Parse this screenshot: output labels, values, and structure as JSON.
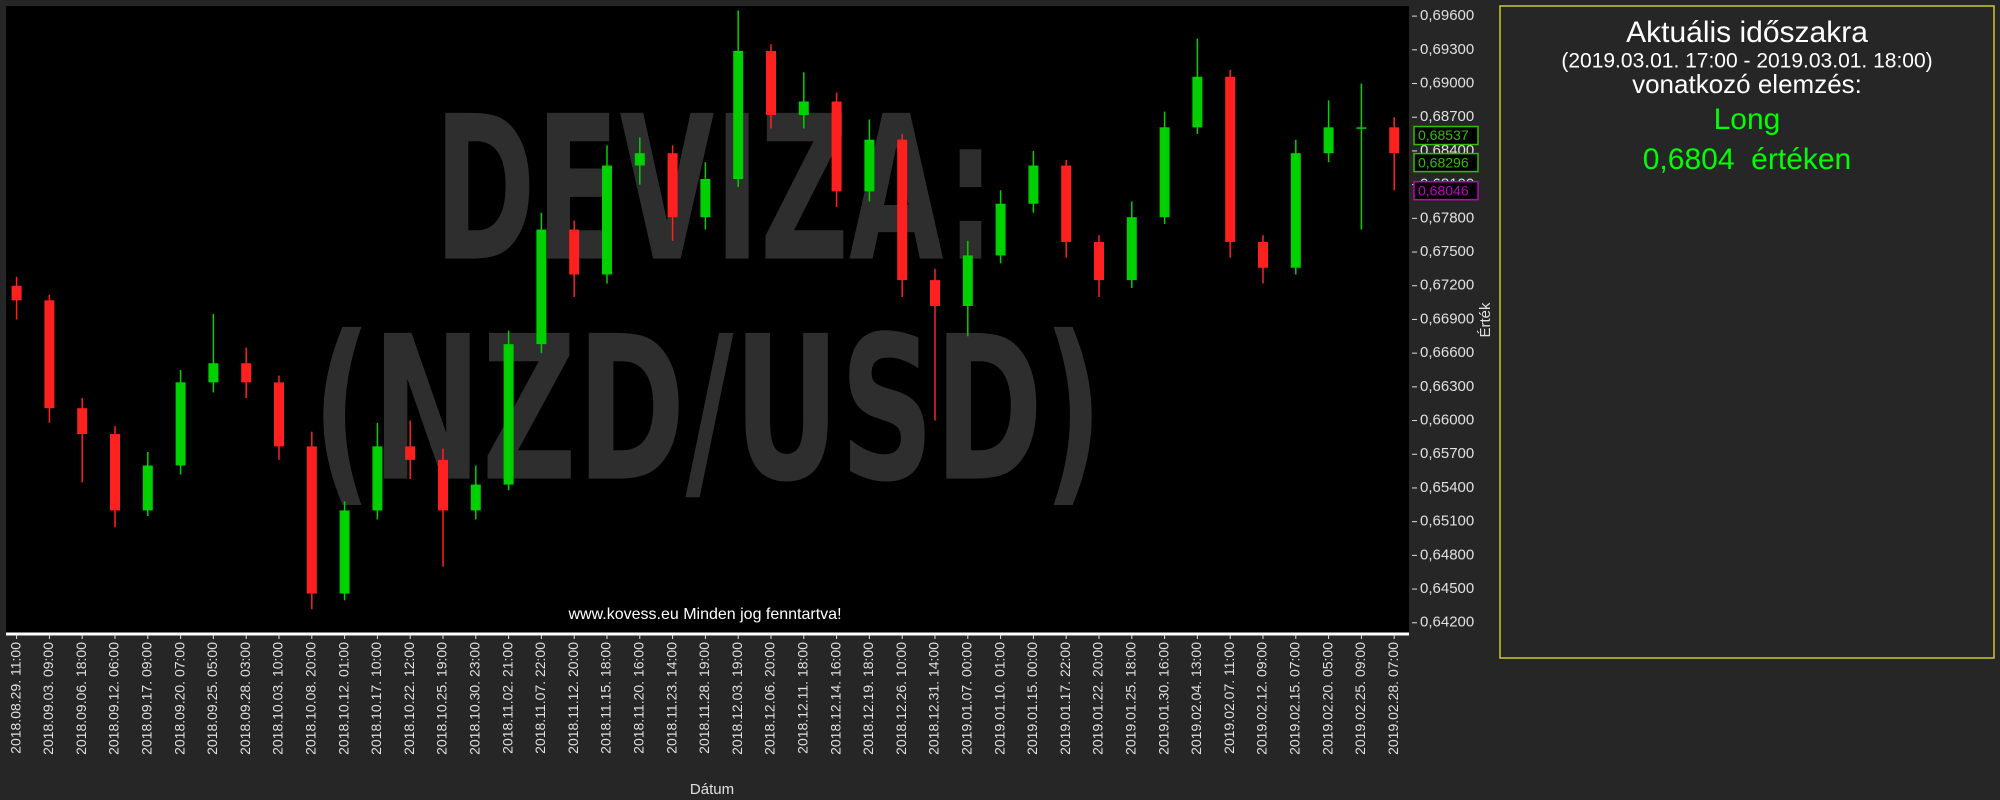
{
  "chart_data": {
    "type": "candlestick",
    "watermark": [
      "DEVIZA:",
      "(NZD/USD)"
    ],
    "footer": "www.kovess.eu Minden jog fenntartva!",
    "xlabel": "Dátum",
    "ylabel": "Érték",
    "categories": [
      "2018.08.29. 11:00",
      "2018.09.03. 09:00",
      "2018.09.06. 18:00",
      "2018.09.12. 06:00",
      "2018.09.17. 09:00",
      "2018.09.20. 07:00",
      "2018.09.25. 05:00",
      "2018.09.28. 03:00",
      "2018.10.03. 10:00",
      "2018.10.08. 20:00",
      "2018.10.12. 01:00",
      "2018.10.17. 10:00",
      "2018.10.22. 12:00",
      "2018.10.25. 19:00",
      "2018.10.30. 23:00",
      "2018.11.02. 21:00",
      "2018.11.07. 22:00",
      "2018.11.12. 20:00",
      "2018.11.15. 18:00",
      "2018.11.20. 16:00",
      "2018.11.23. 14:00",
      "2018.11.28. 19:00",
      "2018.12.03. 19:00",
      "2018.12.06. 20:00",
      "2018.12.11. 18:00",
      "2018.12.14. 16:00",
      "2018.12.19. 18:00",
      "2018.12.26. 10:00",
      "2018.12.31. 14:00",
      "2019.01.07. 00:00",
      "2019.01.10. 01:00",
      "2019.01.15. 00:00",
      "2019.01.17. 22:00",
      "2019.01.22. 20:00",
      "2019.01.25. 18:00",
      "2019.01.30. 16:00",
      "2019.02.04. 13:00",
      "2019.02.07. 11:00",
      "2019.02.12. 09:00",
      "2019.02.15. 07:00",
      "2019.02.20. 05:00",
      "2019.02.25. 09:00",
      "2019.02.28. 07:00"
    ],
    "open": [
      0.672,
      0.6707,
      0.6611,
      0.6588,
      0.652,
      0.656,
      0.6634,
      0.6651,
      0.6634,
      0.6577,
      0.6446,
      0.652,
      0.6577,
      0.6565,
      0.652,
      0.6543,
      0.6668,
      0.677,
      0.673,
      0.6827,
      0.6838,
      0.6781,
      0.6815,
      0.6929,
      0.6872,
      0.6884,
      0.6804,
      0.685,
      0.6725,
      0.6702,
      0.6747,
      0.6793,
      0.6827,
      0.6759,
      0.6725,
      0.6781,
      0.6861,
      0.6906,
      0.6759,
      0.6736,
      0.6838,
      0.6861,
      0.6861
    ],
    "high": [
      0.6728,
      0.6712,
      0.662,
      0.6595,
      0.6572,
      0.6645,
      0.6695,
      0.6665,
      0.664,
      0.659,
      0.6528,
      0.6598,
      0.66,
      0.6575,
      0.656,
      0.668,
      0.6785,
      0.6778,
      0.6845,
      0.6852,
      0.6845,
      0.683,
      0.6965,
      0.6935,
      0.691,
      0.6892,
      0.6868,
      0.6855,
      0.6735,
      0.676,
      0.6805,
      0.684,
      0.6832,
      0.6765,
      0.6795,
      0.6875,
      0.694,
      0.6912,
      0.6765,
      0.685,
      0.6885,
      0.69,
      0.687
    ],
    "low": [
      0.669,
      0.6598,
      0.6545,
      0.6505,
      0.6515,
      0.6552,
      0.6625,
      0.662,
      0.6565,
      0.6432,
      0.644,
      0.6512,
      0.6548,
      0.647,
      0.6512,
      0.6538,
      0.666,
      0.671,
      0.6722,
      0.681,
      0.676,
      0.677,
      0.6808,
      0.686,
      0.686,
      0.679,
      0.6795,
      0.671,
      0.66,
      0.6675,
      0.674,
      0.6785,
      0.6745,
      0.671,
      0.6718,
      0.6775,
      0.6855,
      0.6745,
      0.6722,
      0.673,
      0.683,
      0.677,
      0.6805
    ],
    "close": [
      0.6707,
      0.6611,
      0.6588,
      0.652,
      0.656,
      0.6634,
      0.6651,
      0.6634,
      0.6577,
      0.6446,
      0.652,
      0.6577,
      0.6565,
      0.652,
      0.6543,
      0.6668,
      0.677,
      0.673,
      0.6827,
      0.6838,
      0.6781,
      0.6815,
      0.6929,
      0.6872,
      0.6884,
      0.6804,
      0.685,
      0.6725,
      0.6702,
      0.6747,
      0.6793,
      0.6827,
      0.6759,
      0.6725,
      0.6781,
      0.6861,
      0.6906,
      0.6759,
      0.6736,
      0.6838,
      0.6861,
      0.6861,
      0.6838
    ],
    "up_color": "#00d000",
    "down_color": "#ff2020",
    "ylim": [
      0.641,
      0.6969
    ],
    "yticks": [
      {
        "value": 0.642,
        "label": "0,64200"
      },
      {
        "value": 0.645,
        "label": "0,64500"
      },
      {
        "value": 0.648,
        "label": "0,64800"
      },
      {
        "value": 0.651,
        "label": "0,65100"
      },
      {
        "value": 0.654,
        "label": "0,65400"
      },
      {
        "value": 0.657,
        "label": "0,65700"
      },
      {
        "value": 0.66,
        "label": "0,66000"
      },
      {
        "value": 0.663,
        "label": "0,66300"
      },
      {
        "value": 0.666,
        "label": "0,66600"
      },
      {
        "value": 0.669,
        "label": "0,66900"
      },
      {
        "value": 0.672,
        "label": "0,67200"
      },
      {
        "value": 0.675,
        "label": "0,67500"
      },
      {
        "value": 0.678,
        "label": "0,67800"
      },
      {
        "value": 0.681,
        "label": "0,68100"
      },
      {
        "value": 0.684,
        "label": "0,68400"
      },
      {
        "value": 0.687,
        "label": "0,68700"
      },
      {
        "value": 0.69,
        "label": "0,69000"
      },
      {
        "value": 0.693,
        "label": "0,69300"
      },
      {
        "value": 0.696,
        "label": "0,69600"
      }
    ],
    "grid": false,
    "price_markers": [
      {
        "value": 0.68537,
        "label": "0,68537",
        "color": "#2fbf00"
      },
      {
        "value": 0.68296,
        "label": "0,68296",
        "color": "#2fbf00"
      },
      {
        "value": 0.68046,
        "label": "0,68046",
        "color": "#c000c0"
      }
    ],
    "analysis_panel": {
      "title": "Aktuális időszakra",
      "period": "(2019.03.01. 17:00 - 2019.03.01. 18:00)",
      "subtitle": "vonatkozó elemzés:",
      "signal": "Long",
      "value_text": "0,6804  értéken"
    }
  }
}
